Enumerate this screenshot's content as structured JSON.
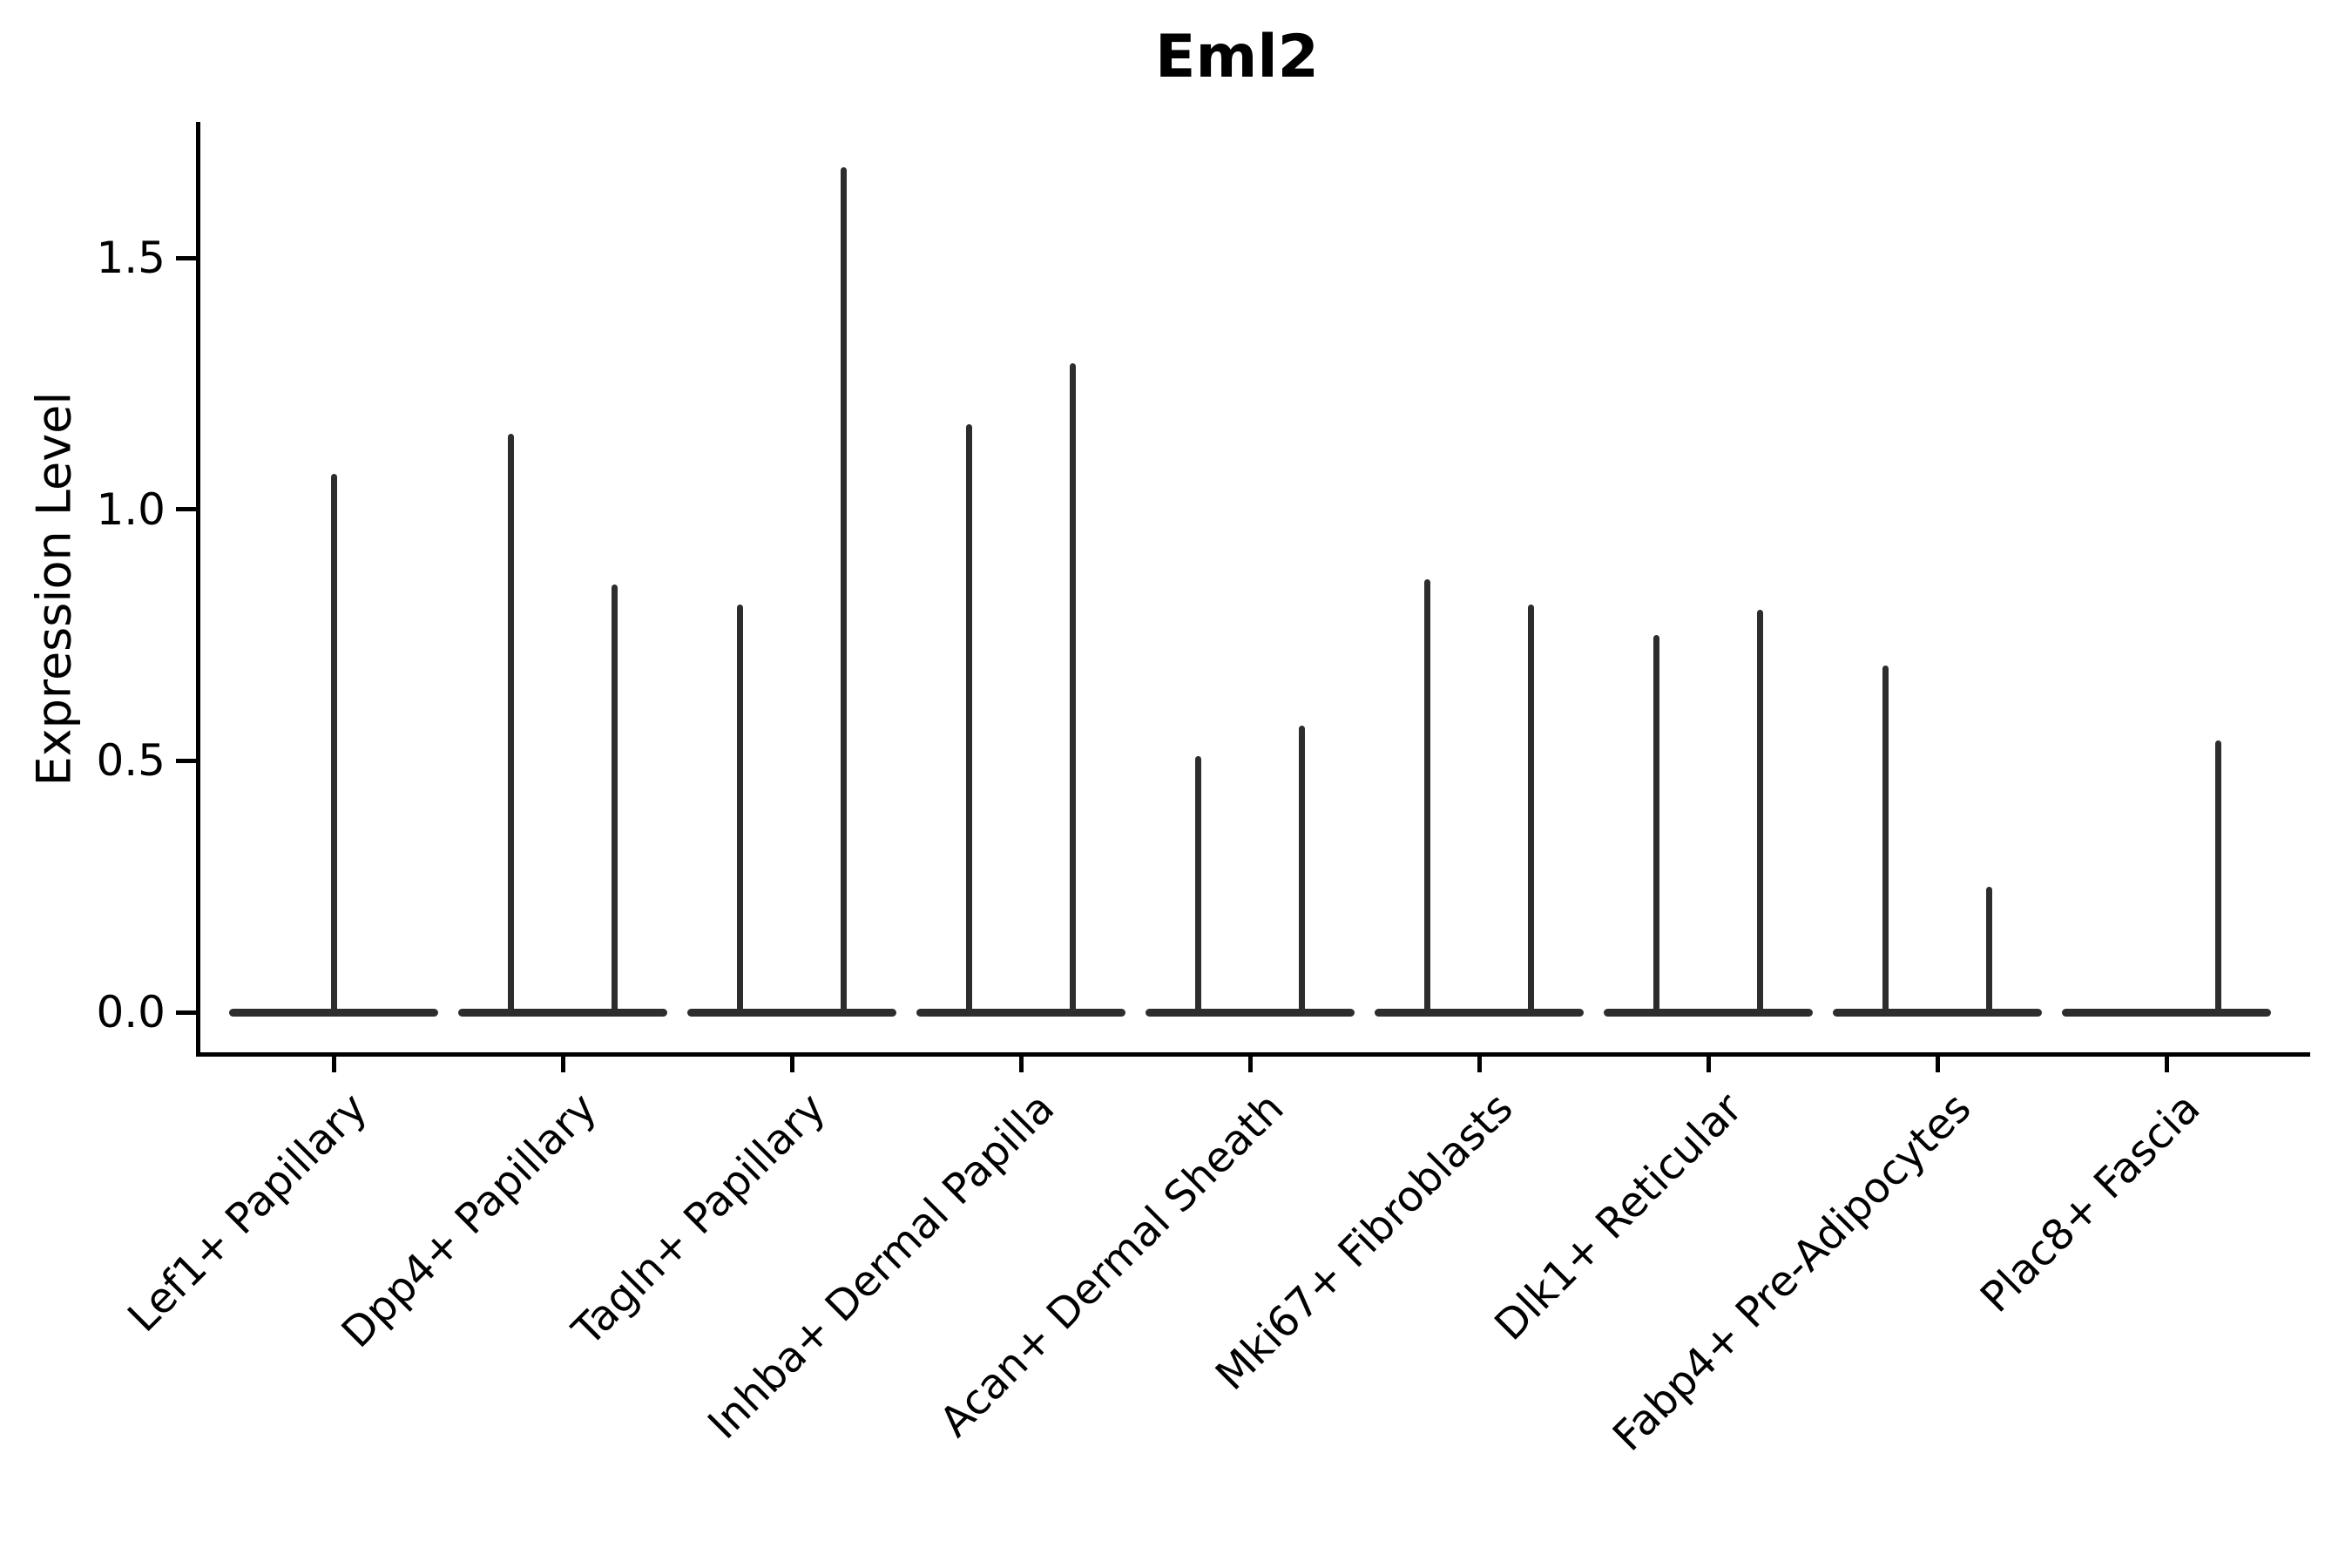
{
  "title": "Eml2",
  "axes": {
    "ylabel": "Expression Level",
    "ytick_labels": [
      "0.0",
      "0.5",
      "1.0",
      "1.5"
    ]
  },
  "colors": {
    "violin_stroke": "#2d2d2d",
    "axis": "#000000",
    "background": "#ffffff"
  },
  "chart_data": {
    "type": "violin",
    "title": "Eml2",
    "xlabel": "",
    "ylabel": "Expression Level",
    "yticks": [
      0.0,
      0.5,
      1.0,
      1.5
    ],
    "ylim": [
      -0.08,
      1.77
    ],
    "grid": false,
    "legend": "none",
    "description": "Violin plot of Eml2 expression per cluster; violins collapse to a flat line at 0 with a thin vertical tail up to the group maximum. Most categories contain two side-by-side violins (two groups); Lef1+ Papillary shows a single full-width violin and the left group of Plac8+ Fascia is entirely 0.",
    "categories": [
      "Lef1+ Papillary",
      "Dpp4+ Papillary",
      "Tagln+ Papillary",
      "Inhba+ Dermal Papilla",
      "Acan+ Dermal Sheath",
      "Mki67+ Fibroblasts",
      "Dlk1+ Reticular",
      "Fabp4+ Pre-Adipocytes",
      "Plac8+ Fascia"
    ],
    "series": [
      {
        "category": "Lef1+ Papillary",
        "violin_max_values": [
          1.07
        ]
      },
      {
        "category": "Dpp4+ Papillary",
        "violin_max_values": [
          1.15,
          0.85
        ]
      },
      {
        "category": "Tagln+ Papillary",
        "violin_max_values": [
          0.81,
          1.68
        ]
      },
      {
        "category": "Inhba+ Dermal Papilla",
        "violin_max_values": [
          1.17,
          1.29
        ]
      },
      {
        "category": "Acan+ Dermal Sheath",
        "violin_max_values": [
          0.51,
          0.57
        ]
      },
      {
        "category": "Mki67+ Fibroblasts",
        "violin_max_values": [
          0.86,
          0.81
        ]
      },
      {
        "category": "Dlk1+ Reticular",
        "violin_max_values": [
          0.75,
          0.8
        ]
      },
      {
        "category": "Fabp4+ Pre-Adipocytes",
        "violin_max_values": [
          0.69,
          0.25
        ]
      },
      {
        "category": "Plac8+ Fascia",
        "violin_max_values": [
          0.0,
          0.54
        ]
      }
    ],
    "baseline_value": 0.0
  }
}
